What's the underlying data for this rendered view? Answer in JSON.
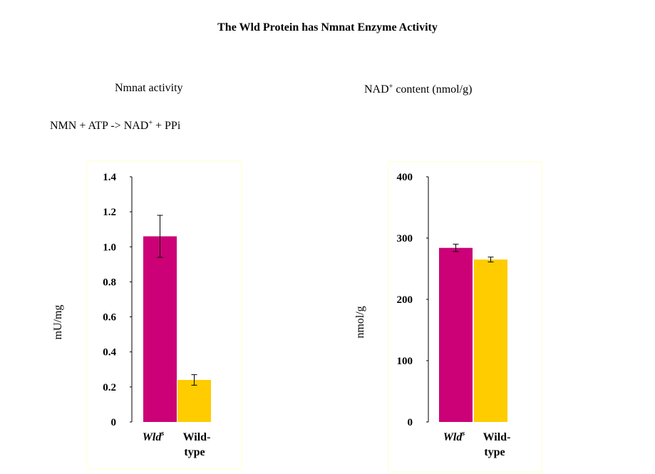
{
  "title": "The Wld Protein has Nmnat Enzyme Activity",
  "left_panel": {
    "heading": "Nmnat activity",
    "reaction_pre": "NMN + ATP -> NAD",
    "reaction_sup": "+",
    "reaction_post": " + PPi"
  },
  "right_panel": {
    "heading_pre": "NAD",
    "heading_sup": "+",
    "heading_post": " content (nmol/g)"
  },
  "colors": {
    "wlds": "#cc0077",
    "wildtype": "#ffcc00",
    "frame": "#ffffcc"
  },
  "chart_data": [
    {
      "type": "bar",
      "categories": [
        {
          "main": "Wld",
          "sup": "s"
        },
        {
          "main": "Wild-",
          "line2": "type"
        }
      ],
      "values": [
        1.06,
        0.24
      ],
      "errors": [
        0.12,
        0.03
      ],
      "ylabel": "mU/mg",
      "ylim": [
        0,
        1.4
      ],
      "yticks": [
        0,
        0.2,
        0.4,
        0.6,
        0.8,
        1.0,
        1.2,
        1.4
      ],
      "ytick_labels": [
        "0",
        "0.2",
        "0.4",
        "0.6",
        "0.8",
        "1.0",
        "1.2",
        "1.4"
      ]
    },
    {
      "type": "bar",
      "categories": [
        {
          "main": "Wld",
          "sup": "s"
        },
        {
          "main": "Wild-",
          "line2": "type"
        }
      ],
      "values": [
        284,
        265
      ],
      "errors": [
        6,
        4
      ],
      "ylabel": "nmol/g",
      "ylim": [
        0,
        400
      ],
      "yticks": [
        0,
        100,
        200,
        300,
        400
      ],
      "ytick_labels": [
        "0",
        "100",
        "200",
        "300",
        "400"
      ]
    }
  ]
}
